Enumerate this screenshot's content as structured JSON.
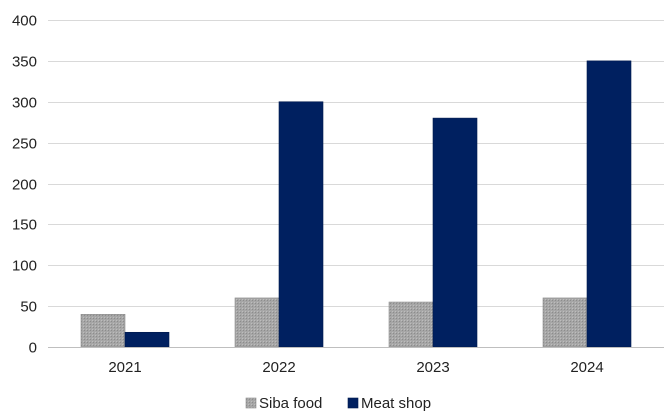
{
  "chart_data": {
    "type": "bar",
    "title": "",
    "xlabel": "",
    "ylabel": "",
    "categories": [
      "2021",
      "2022",
      "2023",
      "2024"
    ],
    "series": [
      {
        "name": "Siba food",
        "values": [
          40,
          60,
          55,
          60
        ],
        "color": "#a6a6a6"
      },
      {
        "name": "Meat shop",
        "values": [
          18,
          300,
          280,
          350
        ],
        "color": "#002060"
      }
    ],
    "ylim": [
      0,
      400
    ],
    "yticks": [
      0,
      50,
      100,
      150,
      200,
      250,
      300,
      350,
      400
    ],
    "grid": true,
    "legend_position": "bottom"
  }
}
